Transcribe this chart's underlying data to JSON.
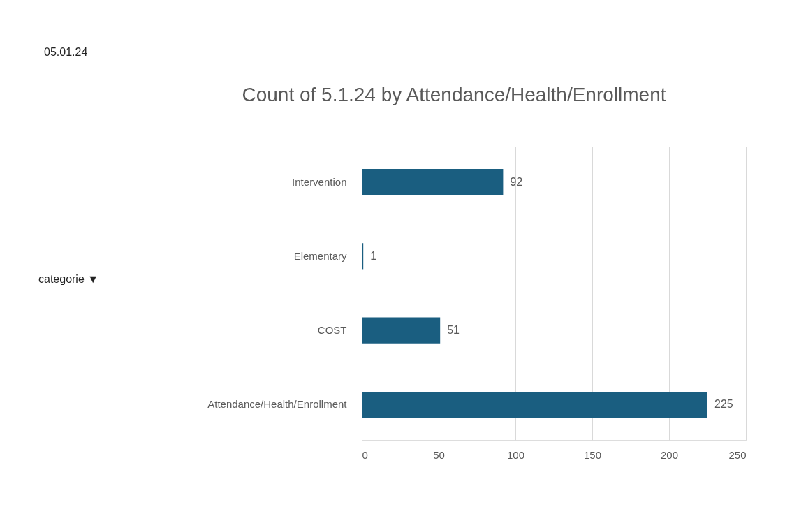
{
  "chart_data": {
    "type": "bar",
    "orientation": "horizontal",
    "title": "Count of 5.1.24 by Attendance/Health/Enrollment",
    "categories": [
      "Intervention",
      "Elementary",
      "COST",
      "Attendance/Health/Enrollment"
    ],
    "values": [
      92,
      1,
      51,
      225
    ],
    "color": "#1a5e80",
    "xlim": [
      0,
      250
    ],
    "xticks": [
      0,
      50,
      100,
      150,
      200,
      250
    ],
    "grid": "x",
    "data_labels": true,
    "annotations": [
      "05.01.24",
      "categorie ▼"
    ]
  }
}
